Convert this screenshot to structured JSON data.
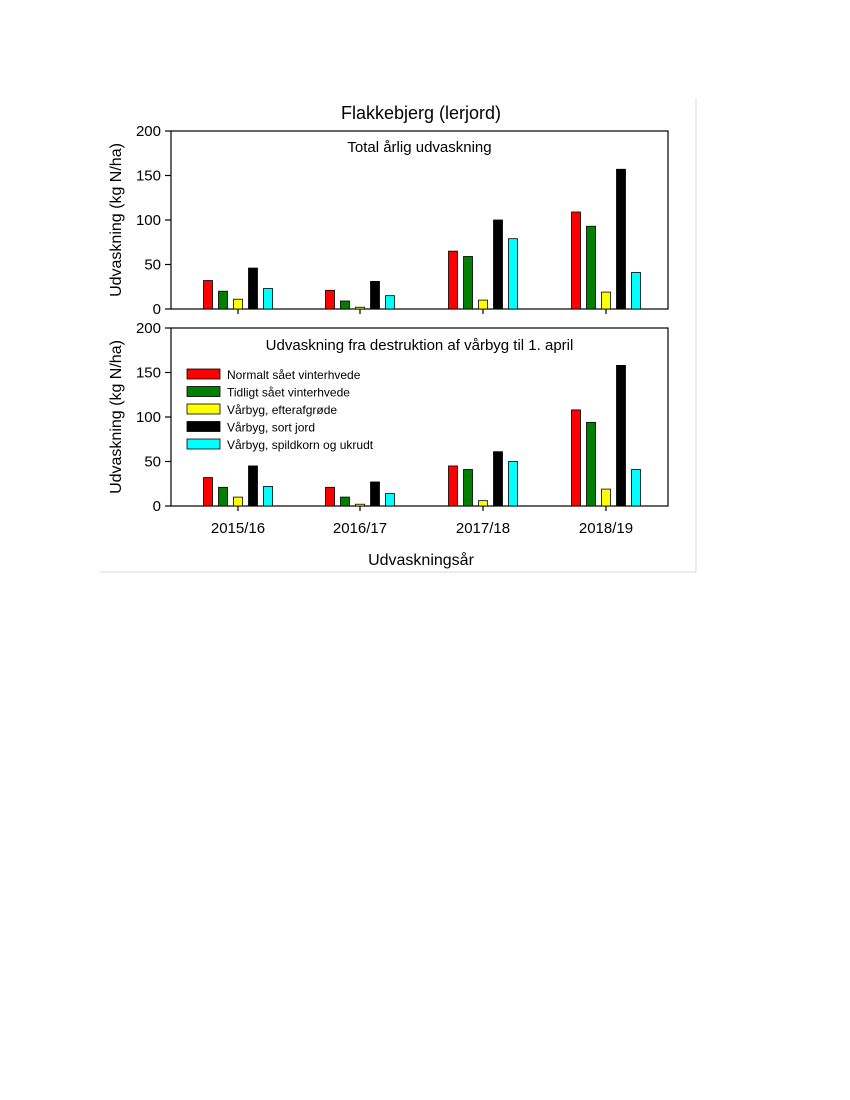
{
  "chart_data": {
    "type": "bar",
    "title": "Flakkebjerg (lerjord)",
    "xlabel": "Udvaskningsår",
    "ylabel": "Udvaskning (kg N/ha)",
    "categories": [
      "2015/16",
      "2016/17",
      "2017/18",
      "2018/19"
    ],
    "ylim": [
      0,
      200
    ],
    "yticks": [
      "0",
      "50",
      "100",
      "150",
      "200"
    ],
    "series_meta": [
      {
        "name": "Normalt sået vinterhvede",
        "color": "#ff0000"
      },
      {
        "name": "Tidligt sået vinterhvede",
        "color": "#008000"
      },
      {
        "name": "Vårbyg, efterafgrøde",
        "color": "#ffff00"
      },
      {
        "name": "Vårbyg, sort jord",
        "color": "#000000"
      },
      {
        "name": "Vårbyg, spildkorn og ukrudt",
        "color": "#00ffff"
      }
    ],
    "panels": [
      {
        "subtitle": "Total årlig udvaskning",
        "series": [
          {
            "name": "Normalt sået vinterhvede",
            "values": [
              32,
              21,
              65,
              109
            ]
          },
          {
            "name": "Tidligt sået vinterhvede",
            "values": [
              20,
              9,
              59,
              93
            ]
          },
          {
            "name": "Vårbyg, efterafgrøde",
            "values": [
              11,
              2,
              10,
              19
            ]
          },
          {
            "name": "Vårbyg, sort jord",
            "values": [
              46,
              31,
              100,
              157
            ]
          },
          {
            "name": "Vårbyg, spildkorn og ukrudt",
            "values": [
              23,
              15,
              79,
              41
            ]
          }
        ]
      },
      {
        "subtitle": "Udvaskning fra destruktion af vårbyg til 1. april",
        "series": [
          {
            "name": "Normalt sået vinterhvede",
            "values": [
              32,
              21,
              45,
              108
            ]
          },
          {
            "name": "Tidligt sået vinterhvede",
            "values": [
              21,
              10,
              41,
              94
            ]
          },
          {
            "name": "Vårbyg, efterafgrøde",
            "values": [
              10,
              2,
              6,
              19
            ]
          },
          {
            "name": "Vårbyg, sort jord",
            "values": [
              45,
              27,
              61,
              158
            ]
          },
          {
            "name": "Vårbyg, spildkorn og ukrudt",
            "values": [
              22,
              14,
              50,
              41
            ]
          }
        ]
      }
    ],
    "legend_placement": "upper-left of lower panel",
    "grid": false
  }
}
